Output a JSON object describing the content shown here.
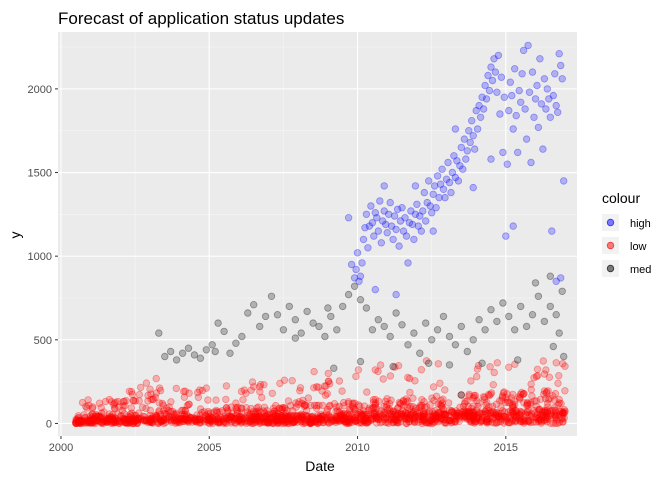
{
  "chart_data": {
    "type": "scatter",
    "title": "Forecast of application status updates",
    "xlabel": "Date",
    "ylabel": "y",
    "x_unit": "year",
    "xlim": [
      1999.9,
      2017.4
    ],
    "ylim": [
      -75,
      2340
    ],
    "x_ticks": [
      2000,
      2005,
      2010,
      2015
    ],
    "x_tick_labels": [
      "2000",
      "2005",
      "2010",
      "2015"
    ],
    "y_ticks": [
      0,
      500,
      1000,
      1500,
      2000
    ],
    "y_tick_labels": [
      "0",
      "500",
      "1000",
      "1500",
      "2000"
    ],
    "grid": true,
    "legend": {
      "title": "colour",
      "position": "right",
      "entries": [
        "high",
        "low",
        "med"
      ]
    },
    "point_opacity": 0.25,
    "series": [
      {
        "name": "high",
        "color": "#0000ff",
        "points": [
          [
            2009.7,
            1230
          ],
          [
            2009.8,
            950
          ],
          [
            2009.9,
            870
          ],
          [
            2009.95,
            920
          ],
          [
            2010.0,
            1020
          ],
          [
            2010.05,
            850
          ],
          [
            2010.1,
            880
          ],
          [
            2010.15,
            960
          ],
          [
            2010.2,
            1100
          ],
          [
            2010.25,
            1170
          ],
          [
            2010.3,
            1250
          ],
          [
            2010.35,
            1050
          ],
          [
            2010.4,
            1180
          ],
          [
            2010.45,
            1300
          ],
          [
            2010.5,
            1200
          ],
          [
            2010.55,
            1120
          ],
          [
            2010.6,
            1260
          ],
          [
            2010.65,
            1230
          ],
          [
            2010.7,
            1150
          ],
          [
            2010.75,
            1330
          ],
          [
            2010.8,
            1080
          ],
          [
            2010.85,
            1210
          ],
          [
            2010.9,
            1270
          ],
          [
            2010.95,
            1190
          ],
          [
            2011.0,
            1140
          ],
          [
            2011.05,
            1250
          ],
          [
            2011.1,
            1320
          ],
          [
            2011.15,
            1180
          ],
          [
            2011.2,
            1100
          ],
          [
            2011.25,
            1240
          ],
          [
            2011.3,
            1160
          ],
          [
            2011.35,
            1280
          ],
          [
            2011.4,
            1060
          ],
          [
            2011.45,
            1210
          ],
          [
            2011.5,
            1290
          ],
          [
            2011.55,
            1150
          ],
          [
            2011.6,
            1230
          ],
          [
            2011.65,
            1120
          ],
          [
            2011.7,
            960
          ],
          [
            2011.75,
            1200
          ],
          [
            2011.8,
            1270
          ],
          [
            2011.85,
            1190
          ],
          [
            2011.9,
            1100
          ],
          [
            2011.95,
            1250
          ],
          [
            2012.0,
            1310
          ],
          [
            2012.05,
            1180
          ],
          [
            2012.1,
            1240
          ],
          [
            2012.15,
            1150
          ],
          [
            2012.2,
            1270
          ],
          [
            2012.25,
            1380
          ],
          [
            2012.3,
            1210
          ],
          [
            2012.35,
            1320
          ],
          [
            2012.4,
            1450
          ],
          [
            2012.45,
            1300
          ],
          [
            2012.5,
            1260
          ],
          [
            2012.55,
            1370
          ],
          [
            2012.6,
            1420
          ],
          [
            2012.65,
            1290
          ],
          [
            2012.7,
            1480
          ],
          [
            2012.75,
            1350
          ],
          [
            2012.8,
            1430
          ],
          [
            2012.85,
            1520
          ],
          [
            2012.9,
            1400
          ],
          [
            2012.95,
            1350
          ],
          [
            2013.0,
            1460
          ],
          [
            2013.05,
            1560
          ],
          [
            2013.1,
            1440
          ],
          [
            2013.15,
            1380
          ],
          [
            2013.2,
            1500
          ],
          [
            2013.25,
            1600
          ],
          [
            2013.3,
            1470
          ],
          [
            2013.35,
            1570
          ],
          [
            2013.4,
            1450
          ],
          [
            2013.45,
            1540
          ],
          [
            2013.5,
            1650
          ],
          [
            2013.55,
            1520
          ],
          [
            2013.6,
            1700
          ],
          [
            2013.65,
            1580
          ],
          [
            2013.7,
            1630
          ],
          [
            2013.75,
            1750
          ],
          [
            2013.8,
            1680
          ],
          [
            2013.85,
            1810
          ],
          [
            2013.9,
            1720
          ],
          [
            2013.95,
            1640
          ],
          [
            2014.0,
            1870
          ],
          [
            2014.05,
            1760
          ],
          [
            2014.1,
            1900
          ],
          [
            2014.15,
            1830
          ],
          [
            2014.2,
            1950
          ],
          [
            2014.25,
            1880
          ],
          [
            2014.3,
            2020
          ],
          [
            2014.35,
            1940
          ],
          [
            2014.4,
            2080
          ],
          [
            2014.45,
            1990
          ],
          [
            2014.5,
            2130
          ],
          [
            2014.55,
            2050
          ],
          [
            2014.6,
            2180
          ],
          [
            2014.65,
            2100
          ],
          [
            2014.7,
            1980
          ],
          [
            2014.75,
            2200
          ],
          [
            2014.8,
            1850
          ],
          [
            2014.85,
            2070
          ],
          [
            2014.9,
            1620
          ],
          [
            2014.95,
            1950
          ],
          [
            2015.0,
            1120
          ],
          [
            2015.05,
            1550
          ],
          [
            2015.1,
            1870
          ],
          [
            2015.15,
            2040
          ],
          [
            2015.2,
            1960
          ],
          [
            2015.25,
            1760
          ],
          [
            2015.3,
            2120
          ],
          [
            2015.35,
            1840
          ],
          [
            2015.4,
            1620
          ],
          [
            2015.45,
            1990
          ],
          [
            2015.5,
            1920
          ],
          [
            2015.55,
            2090
          ],
          [
            2015.6,
            2230
          ],
          [
            2015.65,
            1880
          ],
          [
            2015.7,
            1700
          ],
          [
            2015.75,
            2260
          ],
          [
            2015.8,
            1980
          ],
          [
            2015.85,
            1560
          ],
          [
            2015.9,
            2100
          ],
          [
            2015.95,
            1830
          ],
          [
            2016.0,
            1940
          ],
          [
            2016.05,
            2020
          ],
          [
            2016.1,
            1770
          ],
          [
            2016.15,
            2180
          ],
          [
            2016.2,
            1910
          ],
          [
            2016.25,
            1640
          ],
          [
            2016.3,
            2060
          ],
          [
            2016.35,
            1880
          ],
          [
            2016.4,
            2000
          ],
          [
            2016.45,
            1940
          ],
          [
            2016.5,
            1830
          ],
          [
            2016.55,
            1150
          ],
          [
            2016.6,
            1960
          ],
          [
            2016.65,
            2090
          ],
          [
            2016.7,
            1900
          ],
          [
            2016.75,
            1860
          ],
          [
            2016.8,
            2210
          ],
          [
            2016.85,
            2140
          ],
          [
            2016.9,
            2060
          ],
          [
            2016.95,
            1450
          ],
          [
            2016.85,
            870
          ],
          [
            2016.7,
            850
          ],
          [
            2015.25,
            1180
          ],
          [
            2010.6,
            800
          ],
          [
            2011.3,
            770
          ],
          [
            2013.9,
            1410
          ],
          [
            2014.5,
            1580
          ],
          [
            2013.3,
            1760
          ],
          [
            2012.55,
            1150
          ],
          [
            2011.95,
            1420
          ],
          [
            2010.9,
            1420
          ]
        ]
      },
      {
        "name": "med",
        "color": "#000000",
        "points": [
          [
            2003.3,
            540
          ],
          [
            2003.5,
            400
          ],
          [
            2003.7,
            430
          ],
          [
            2003.9,
            380
          ],
          [
            2004.1,
            420
          ],
          [
            2004.3,
            450
          ],
          [
            2004.5,
            410
          ],
          [
            2004.7,
            390
          ],
          [
            2004.9,
            440
          ],
          [
            2005.1,
            470
          ],
          [
            2005.3,
            600
          ],
          [
            2005.5,
            550
          ],
          [
            2005.7,
            420
          ],
          [
            2005.9,
            480
          ],
          [
            2006.1,
            520
          ],
          [
            2006.3,
            660
          ],
          [
            2006.5,
            710
          ],
          [
            2006.7,
            580
          ],
          [
            2006.9,
            640
          ],
          [
            2007.1,
            760
          ],
          [
            2007.3,
            650
          ],
          [
            2007.5,
            560
          ],
          [
            2007.7,
            700
          ],
          [
            2007.9,
            620
          ],
          [
            2008.1,
            540
          ],
          [
            2008.3,
            670
          ],
          [
            2008.5,
            600
          ],
          [
            2008.7,
            580
          ],
          [
            2008.9,
            520
          ],
          [
            2009.1,
            640
          ],
          [
            2009.3,
            560
          ],
          [
            2009.5,
            700
          ],
          [
            2009.7,
            770
          ],
          [
            2009.9,
            820
          ],
          [
            2010.1,
            740
          ],
          [
            2010.3,
            690
          ],
          [
            2010.5,
            560
          ],
          [
            2010.7,
            620
          ],
          [
            2010.9,
            580
          ],
          [
            2011.1,
            520
          ],
          [
            2011.3,
            660
          ],
          [
            2011.5,
            590
          ],
          [
            2011.7,
            470
          ],
          [
            2011.9,
            540
          ],
          [
            2012.1,
            420
          ],
          [
            2012.3,
            600
          ],
          [
            2012.5,
            500
          ],
          [
            2012.7,
            560
          ],
          [
            2012.9,
            640
          ],
          [
            2013.1,
            520
          ],
          [
            2013.3,
            470
          ],
          [
            2013.5,
            580
          ],
          [
            2013.7,
            430
          ],
          [
            2013.9,
            500
          ],
          [
            2014.1,
            620
          ],
          [
            2014.3,
            560
          ],
          [
            2014.5,
            680
          ],
          [
            2014.7,
            610
          ],
          [
            2014.9,
            720
          ],
          [
            2015.1,
            640
          ],
          [
            2015.3,
            560
          ],
          [
            2015.5,
            700
          ],
          [
            2015.7,
            580
          ],
          [
            2015.9,
            650
          ],
          [
            2016.1,
            760
          ],
          [
            2016.3,
            610
          ],
          [
            2016.5,
            700
          ],
          [
            2016.7,
            650
          ],
          [
            2016.9,
            790
          ],
          [
            2016.8,
            540
          ],
          [
            2016.6,
            460
          ],
          [
            2016.95,
            400
          ],
          [
            2015.4,
            380
          ],
          [
            2014.2,
            360
          ],
          [
            2013.1,
            350
          ],
          [
            2012.4,
            360
          ],
          [
            2011.2,
            340
          ],
          [
            2010.1,
            370
          ],
          [
            2009.2,
            330
          ],
          [
            2016.0,
            840
          ],
          [
            2016.5,
            880
          ],
          [
            2013.5,
            170
          ],
          [
            2005.2,
            430
          ],
          [
            2007.9,
            510
          ],
          [
            2009.0,
            690
          ]
        ]
      }
    ],
    "low_series": {
      "name": "low",
      "color": "#ff0000",
      "description_ranges": {
        "x_start": 2000.5,
        "x_end": 2017.0,
        "y_min": 0,
        "y_max": 380
      }
    }
  }
}
